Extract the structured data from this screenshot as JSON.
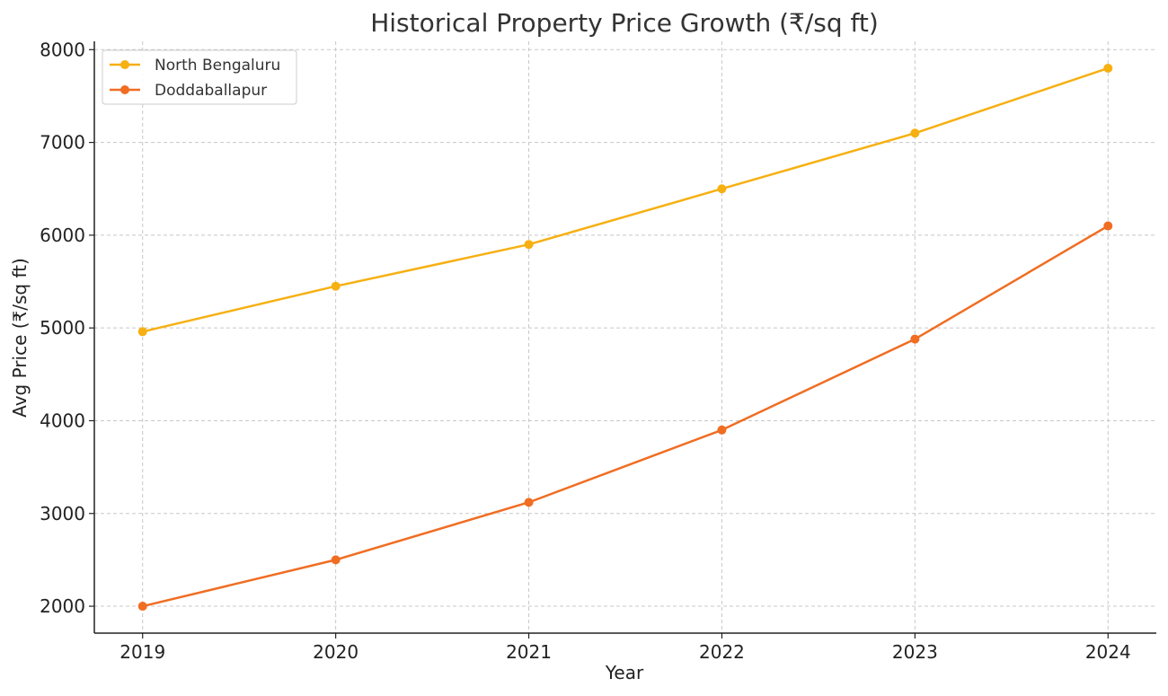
{
  "chart_data": {
    "type": "line",
    "title": "Historical Property Price Growth (₹/sq ft)",
    "xlabel": "Year",
    "ylabel": "Avg Price (₹/sq ft)",
    "x": [
      2019,
      2020,
      2021,
      2022,
      2023,
      2024
    ],
    "x_tick_labels": [
      "2019",
      "2020",
      "2021",
      "2022",
      "2023",
      "2024"
    ],
    "y_ticks": [
      2000,
      3000,
      4000,
      5000,
      6000,
      7000,
      8000
    ],
    "y_tick_labels": [
      "2000",
      "3000",
      "4000",
      "5000",
      "6000",
      "7000",
      "8000"
    ],
    "xlim": [
      2018.75,
      2024.25
    ],
    "ylim": [
      1710,
      8090
    ],
    "grid": true,
    "legend_position": "top-left",
    "series": [
      {
        "name": "North Bengaluru",
        "values": [
          4960,
          5450,
          5900,
          6500,
          7100,
          7800
        ],
        "color": "#f6b012",
        "marker": "circle"
      },
      {
        "name": "Doddaballapur",
        "values": [
          2000,
          2500,
          3120,
          3900,
          4880,
          6100
        ],
        "color": "#f06d22",
        "marker": "circle"
      }
    ]
  }
}
